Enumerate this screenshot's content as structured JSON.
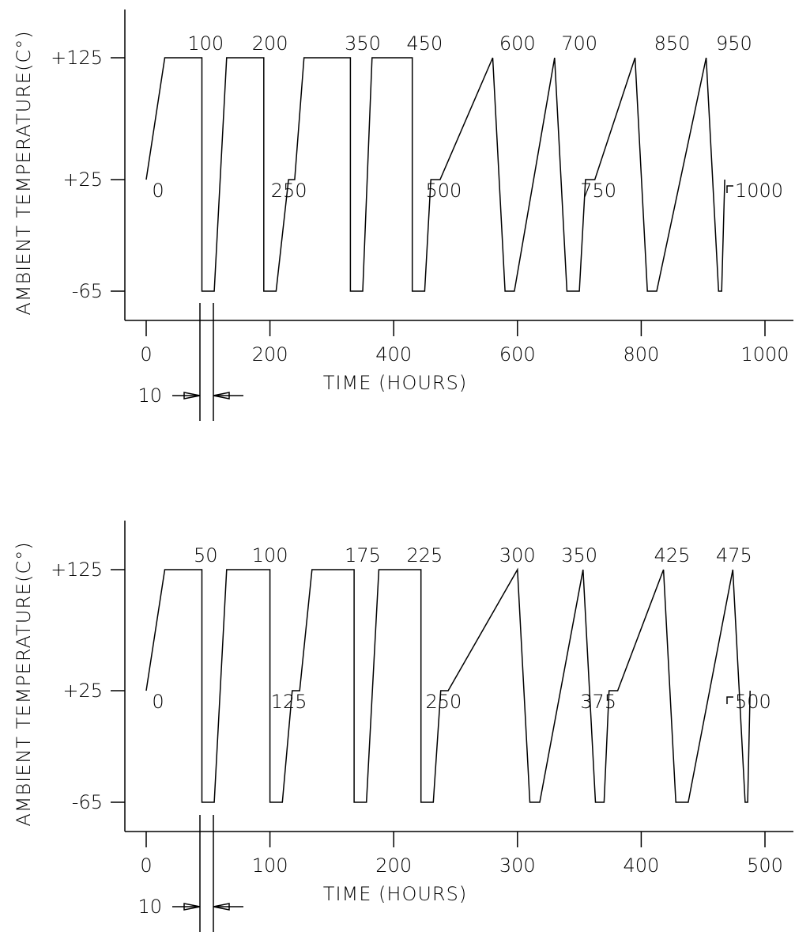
{
  "chart_data": [
    {
      "type": "line",
      "xlabel": "TIME (HOURS)",
      "ylabel": "AMBIENT TEMPERATURE(C°)",
      "xlim": [
        0,
        1000
      ],
      "xticks": [
        0,
        200,
        400,
        600,
        800,
        1000
      ],
      "xtick_labels": [
        "0",
        "200",
        "400",
        "600",
        "800",
        "1000"
      ],
      "yticks": [
        125,
        25,
        -65
      ],
      "ytick_labels": [
        "+125",
        "+25",
        "-65"
      ],
      "dwell_note": "10",
      "point_labels": [
        {
          "text": "0",
          "x": 0,
          "y": 25
        },
        {
          "text": "100",
          "x": 100,
          "y": 125
        },
        {
          "text": "200",
          "x": 200,
          "y": 125
        },
        {
          "text": "250",
          "x": 250,
          "y": 25
        },
        {
          "text": "350",
          "x": 350,
          "y": 125
        },
        {
          "text": "450",
          "x": 450,
          "y": 125
        },
        {
          "text": "500",
          "x": 500,
          "y": 25
        },
        {
          "text": "600",
          "x": 600,
          "y": 125
        },
        {
          "text": "700",
          "x": 700,
          "y": 125
        },
        {
          "text": "750",
          "x": 750,
          "y": 25
        },
        {
          "text": "850",
          "x": 850,
          "y": 125
        },
        {
          "text": "950",
          "x": 950,
          "y": 125
        },
        {
          "text": "1000",
          "x": 1000,
          "y": 25
        }
      ],
      "series": [
        {
          "x": [
            0,
            30,
            90,
            90,
            110,
            130,
            190,
            190,
            210,
            230,
            240,
            255,
            330,
            330,
            350,
            365,
            430,
            430,
            450,
            460,
            475,
            560,
            560,
            580,
            595,
            660,
            660,
            680,
            700,
            710,
            725,
            790,
            790,
            810,
            825,
            905,
            905,
            925,
            930,
            935
          ],
          "y": [
            25,
            125,
            125,
            -65,
            -65,
            125,
            125,
            -65,
            -65,
            25,
            25,
            125,
            125,
            -65,
            -65,
            125,
            125,
            -65,
            -65,
            25,
            25,
            125,
            125,
            -65,
            -65,
            125,
            125,
            -65,
            -65,
            25,
            25,
            125,
            125,
            -65,
            -65,
            125,
            125,
            -65,
            -65,
            25
          ]
        }
      ]
    },
    {
      "type": "line",
      "xlabel": "TIME (HOURS)",
      "ylabel": "AMBIENT TEMPERATURE(C°)",
      "xlim": [
        0,
        500
      ],
      "xticks": [
        0,
        100,
        200,
        300,
        400,
        500
      ],
      "xtick_labels": [
        "0",
        "100",
        "200",
        "300",
        "400",
        "500"
      ],
      "yticks": [
        125,
        25,
        -65
      ],
      "ytick_labels": [
        "+125",
        "+25",
        "-65"
      ],
      "dwell_note": "10",
      "point_labels": [
        {
          "text": "0",
          "x": 0,
          "y": 25
        },
        {
          "text": "50",
          "x": 50,
          "y": 125
        },
        {
          "text": "100",
          "x": 100,
          "y": 125
        },
        {
          "text": "125",
          "x": 125,
          "y": 25
        },
        {
          "text": "175",
          "x": 175,
          "y": 125
        },
        {
          "text": "225",
          "x": 225,
          "y": 125
        },
        {
          "text": "250",
          "x": 250,
          "y": 25
        },
        {
          "text": "300",
          "x": 300,
          "y": 125
        },
        {
          "text": "350",
          "x": 350,
          "y": 125
        },
        {
          "text": "375",
          "x": 375,
          "y": 25
        },
        {
          "text": "425",
          "x": 425,
          "y": 125
        },
        {
          "text": "475",
          "x": 475,
          "y": 125
        },
        {
          "text": "500",
          "x": 500,
          "y": 25
        }
      ],
      "series": [
        {
          "x": [
            0,
            15,
            45,
            45,
            55,
            65,
            100,
            100,
            110,
            118,
            124,
            134,
            168,
            168,
            178,
            188,
            222,
            222,
            232,
            238,
            244,
            300,
            300,
            310,
            318,
            353,
            353,
            363,
            370,
            374,
            381,
            418,
            418,
            428,
            438,
            474,
            474,
            484,
            486,
            488
          ],
          "y": [
            25,
            125,
            125,
            -65,
            -65,
            125,
            125,
            -65,
            -65,
            25,
            25,
            125,
            125,
            -65,
            -65,
            125,
            125,
            -65,
            -65,
            25,
            25,
            125,
            125,
            -65,
            -65,
            125,
            125,
            -65,
            -65,
            25,
            25,
            125,
            125,
            -65,
            -65,
            125,
            125,
            -65,
            -65,
            25
          ]
        }
      ]
    }
  ]
}
